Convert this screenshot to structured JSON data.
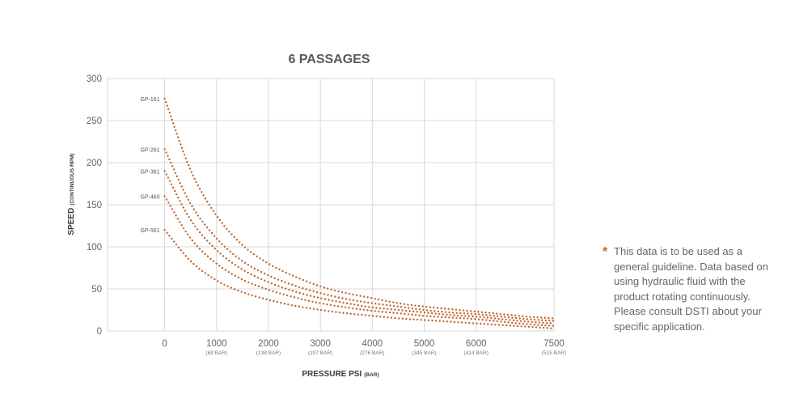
{
  "chart_data": {
    "type": "line",
    "title": "6 PASSAGES",
    "xlabel": "PRESSURE PSI",
    "xlabel_unit": "(BAR)",
    "ylabel": "SPEED",
    "ylabel_unit": "(CONTINUOUS RPM)",
    "xlim": [
      -1100,
      7500
    ],
    "ylim": [
      0,
      300
    ],
    "x_ticks": [
      {
        "value": 0,
        "label": "0",
        "sublabel": ""
      },
      {
        "value": 1000,
        "label": "1000",
        "sublabel": "(69 BAR)"
      },
      {
        "value": 2000,
        "label": "2000",
        "sublabel": "(138 BAR)"
      },
      {
        "value": 3000,
        "label": "3000",
        "sublabel": "(207 BAR)"
      },
      {
        "value": 4000,
        "label": "4000",
        "sublabel": "(276 BAR)"
      },
      {
        "value": 5000,
        "label": "5000",
        "sublabel": "(345 BAR)"
      },
      {
        "value": 6000,
        "label": "6000",
        "sublabel": "(414 BAR)"
      },
      {
        "value": 7500,
        "label": "7500",
        "sublabel": "(515 BAR)"
      }
    ],
    "y_ticks": [
      0,
      50,
      100,
      150,
      200,
      250,
      300
    ],
    "grid": true,
    "line_style": "dotted",
    "line_color": "#c0642a",
    "x": [
      0,
      500,
      1000,
      1500,
      2000,
      2500,
      3000,
      3500,
      4000,
      4500,
      5000,
      5500,
      6000,
      6500,
      7000,
      7500
    ],
    "series": [
      {
        "name": "GP-161",
        "values": [
          276,
          191,
          137,
          102,
          80,
          65,
          53,
          45,
          39,
          33,
          29,
          26,
          23,
          20,
          17,
          15
        ]
      },
      {
        "name": "GP-261",
        "values": [
          216,
          151,
          110,
          83,
          66,
          54,
          45,
          38,
          33,
          29,
          25,
          22,
          20,
          17,
          14,
          12
        ]
      },
      {
        "name": "GP-361",
        "values": [
          190,
          132,
          96,
          73,
          58,
          47,
          39,
          33,
          28,
          25,
          22,
          19,
          17,
          14,
          11,
          9
        ]
      },
      {
        "name": "GP-460",
        "values": [
          160,
          110,
          80,
          61,
          49,
          40,
          33,
          28,
          24,
          21,
          18,
          16,
          14,
          11,
          8,
          6
        ]
      },
      {
        "name": "GP-561",
        "values": [
          120,
          83,
          60,
          46,
          37,
          30,
          25,
          21,
          18,
          15,
          13,
          11,
          9,
          7,
          5,
          3
        ]
      }
    ]
  },
  "note": {
    "star": "*",
    "text": "This data is to be used as a general guideline. Data based on using hydraulic fluid with the product rotating continuously. Please consult DSTI about your specific application."
  }
}
